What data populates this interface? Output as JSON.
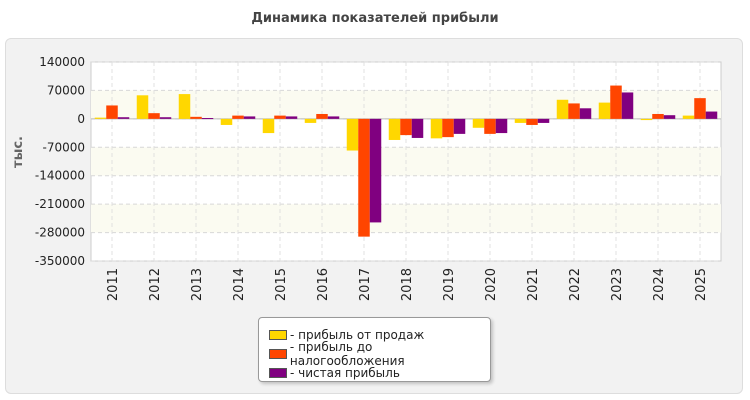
{
  "chart_data": {
    "type": "bar",
    "title": "Динамика показателей прибыли",
    "ylabel": "тыс.",
    "xlabel": "",
    "ylim": [
      -350000,
      140000
    ],
    "yticks": [
      140000,
      70000,
      0,
      -70000,
      -140000,
      -210000,
      -280000,
      -350000
    ],
    "grid": true,
    "legend_position": "bottom",
    "categories": [
      "2011",
      "2012",
      "2013",
      "2014",
      "2015",
      "2016",
      "2017",
      "2018",
      "2019",
      "2020",
      "2021",
      "2022",
      "2023",
      "2024",
      "2025"
    ],
    "series": [
      {
        "name": "- прибыль от продаж",
        "color": "#ffd700",
        "values": [
          3000,
          58000,
          61000,
          -15000,
          -35000,
          -10000,
          -78000,
          -52000,
          -48000,
          -22000,
          -10000,
          47000,
          40000,
          -3000,
          8000
        ]
      },
      {
        "name": "- прибыль до налогообложения",
        "color": "#ff4500",
        "values": [
          33000,
          14000,
          5000,
          8000,
          8000,
          12000,
          -290000,
          -40000,
          -45000,
          -37000,
          -15000,
          38000,
          82000,
          12000,
          51000
        ]
      },
      {
        "name": "- чистая прибыль",
        "color": "#800080",
        "values": [
          4000,
          4000,
          2000,
          6000,
          6000,
          6000,
          -255000,
          -47000,
          -37000,
          -35000,
          -10000,
          26000,
          65000,
          9000,
          18000
        ]
      }
    ]
  }
}
